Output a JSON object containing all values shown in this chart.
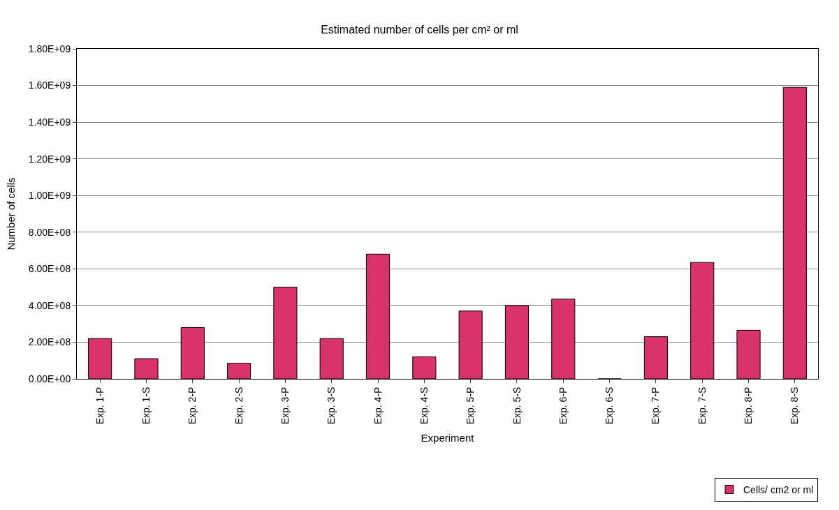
{
  "chart_data": {
    "type": "bar",
    "title": "Estimated number of cells per cm² or ml",
    "xlabel": "Experiment",
    "ylabel": "Number of cells",
    "categories": [
      "Exp. 1-P",
      "Exp. 1-S",
      "Exp. 2-P",
      "Exp. 2-S",
      "Exp. 3-P",
      "Exp. 3-S",
      "Exp. 4-P",
      "Exp. 4-S",
      "Exp. 5-P",
      "Exp. 5-S",
      "Exp. 6-P",
      "Exp. 6-S",
      "Exp. 7-P",
      "Exp. 7-S",
      "Exp. 8-P",
      "Exp. 8-S"
    ],
    "series": [
      {
        "name": "Cells/ cm2 or ml",
        "color": "#d8336a",
        "values": [
          220000000.0,
          110000000.0,
          280000000.0,
          85000000.0,
          500000000.0,
          220000000.0,
          680000000.0,
          120000000.0,
          370000000.0,
          400000000.0,
          435000000.0,
          0,
          230000000.0,
          635000000.0,
          265000000.0,
          1590000000.0
        ]
      }
    ],
    "ylim": [
      0,
      1800000000.0
    ],
    "yticks": [
      {
        "value": 0,
        "label": "0.00E+00"
      },
      {
        "value": 200000000.0,
        "label": "2.00E+08"
      },
      {
        "value": 400000000.0,
        "label": "4.00E+08"
      },
      {
        "value": 600000000.0,
        "label": "6.00E+08"
      },
      {
        "value": 800000000.0,
        "label": "8.00E+08"
      },
      {
        "value": 1000000000.0,
        "label": "1.00E+09"
      },
      {
        "value": 1200000000.0,
        "label": "1.20E+09"
      },
      {
        "value": 1400000000.0,
        "label": "1.40E+09"
      },
      {
        "value": 1600000000.0,
        "label": "1.60E+09"
      },
      {
        "value": 1800000000.0,
        "label": "1.80E+09"
      }
    ],
    "grid": "y",
    "legend": "bottom right"
  }
}
